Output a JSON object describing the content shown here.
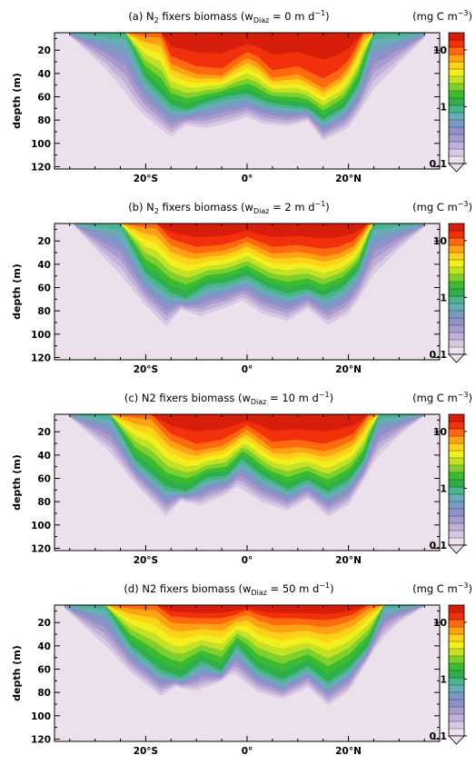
{
  "chart_data": [
    {
      "type": "heatmap",
      "panel_label": "(a)",
      "title": "(a) N2 fixers biomass (wDiaz = 0 m d-1)",
      "title_parts": {
        "pre": "(a) N",
        "sub1": "2",
        "mid": " fixers biomass (w",
        "sub2": "Diaz",
        "post": " = 0 m d",
        "sup": "−1",
        "end": ")"
      },
      "units": {
        "pre": "(mg C m",
        "sup": "−3",
        "end": ")"
      },
      "ylabel": "depth (m)",
      "x_ticks": [
        "20°S",
        "0°",
        "20°N"
      ],
      "x_tick_values": [
        -20,
        0,
        20
      ],
      "y_ticks": [
        "20",
        "40",
        "60",
        "80",
        "100",
        "120"
      ],
      "y_tick_values": [
        20,
        40,
        60,
        80,
        100,
        120
      ],
      "xlim": [
        -38,
        38
      ],
      "ylim": [
        5,
        122
      ],
      "colorbar_labels": [
        "10",
        "1",
        "0.1"
      ],
      "colorbar_range": [
        0.1,
        20
      ],
      "colorbar_scale": "log",
      "iso_depths": [
        {
          "level": 10,
          "lat": [
            -17,
            -15,
            -10,
            -5,
            -2,
            0,
            2,
            5,
            10,
            15,
            18,
            20,
            23
          ],
          "depth": [
            5,
            28,
            38,
            40,
            30,
            24,
            28,
            42,
            38,
            50,
            42,
            32,
            5
          ]
        },
        {
          "level": 1,
          "lat": [
            -24,
            -20,
            -15,
            -12,
            -8,
            -4,
            0,
            4,
            8,
            12,
            15,
            19,
            22,
            25
          ],
          "depth": [
            5,
            45,
            68,
            72,
            65,
            60,
            58,
            65,
            68,
            70,
            80,
            70,
            50,
            5
          ]
        },
        {
          "level": 0.1,
          "lat": [
            -35,
            -28,
            -22,
            -15,
            -12,
            -8,
            -3,
            0,
            3,
            8,
            12,
            15,
            20,
            25,
            30,
            35
          ],
          "depth": [
            8,
            40,
            75,
            98,
            86,
            90,
            85,
            80,
            86,
            88,
            82,
            100,
            90,
            60,
            35,
            10
          ]
        }
      ]
    },
    {
      "type": "heatmap",
      "panel_label": "(b)",
      "title": "(b) N2 fixers biomass (wDiaz = 2 m d-1)",
      "title_parts": {
        "pre": "(b) N",
        "sub1": "2",
        "mid": " fixers biomass (w",
        "sub2": "Diaz",
        "post": " = 2 m d",
        "sup": "−1",
        "end": ")"
      },
      "units": {
        "pre": "(mg C m",
        "sup": "−3",
        "end": ")"
      },
      "ylabel": "depth (m)",
      "x_ticks": [
        "20°S",
        "0°",
        "20°N"
      ],
      "x_tick_values": [
        -20,
        0,
        20
      ],
      "y_ticks": [
        "20",
        "40",
        "60",
        "80",
        "100",
        "120"
      ],
      "y_tick_values": [
        20,
        40,
        60,
        80,
        100,
        120
      ],
      "xlim": [
        -38,
        38
      ],
      "ylim": [
        5,
        122
      ],
      "colorbar_labels": [
        "10",
        "1",
        "0.1"
      ],
      "colorbar_range": [
        0.1,
        20
      ],
      "colorbar_scale": "log",
      "iso_depths": [
        {
          "level": 10,
          "lat": [
            -18,
            -15,
            -10,
            -5,
            -2,
            0,
            2,
            5,
            10,
            15,
            18,
            21,
            24
          ],
          "depth": [
            5,
            20,
            28,
            26,
            22,
            18,
            22,
            28,
            26,
            30,
            28,
            22,
            5
          ]
        },
        {
          "level": 1,
          "lat": [
            -25,
            -20,
            -15,
            -12,
            -8,
            -4,
            0,
            4,
            8,
            12,
            15,
            19,
            22,
            25
          ],
          "depth": [
            5,
            48,
            65,
            70,
            58,
            56,
            50,
            60,
            66,
            62,
            68,
            60,
            45,
            5
          ]
        },
        {
          "level": 0.1,
          "lat": [
            -34,
            -28,
            -22,
            -16,
            -13,
            -9,
            -4,
            -1,
            3,
            8,
            12,
            16,
            20,
            25,
            30,
            35
          ],
          "depth": [
            8,
            40,
            70,
            98,
            80,
            88,
            80,
            74,
            86,
            92,
            80,
            96,
            86,
            55,
            30,
            8
          ]
        }
      ]
    },
    {
      "type": "heatmap",
      "panel_label": "(c)",
      "title": "(c) N2 fixers biomass (wDiaz = 10 m d-1)",
      "title_parts": {
        "pre": "(c) N2 fixers biomass (w",
        "sub1": "",
        "mid": "",
        "sub2": "Diaz",
        "post": " = 10 m d",
        "sup": "−1",
        "end": ")"
      },
      "units": {
        "pre": "(mg C m",
        "sup": "−3",
        "end": ")"
      },
      "ylabel": "depth (m)",
      "x_ticks": [
        "20°S",
        "0°",
        "20°N"
      ],
      "x_tick_values": [
        -20,
        0,
        20
      ],
      "y_ticks": [
        "20",
        "40",
        "60",
        "80",
        "100",
        "120"
      ],
      "y_tick_values": [
        20,
        40,
        60,
        80,
        100,
        120
      ],
      "xlim": [
        -38,
        38
      ],
      "ylim": [
        5,
        122
      ],
      "colorbar_labels": [
        "10",
        "1",
        "0.1"
      ],
      "colorbar_range": [
        0.1,
        20
      ],
      "colorbar_scale": "log",
      "iso_depths": [
        {
          "level": 10,
          "lat": [
            -19,
            -15,
            -10,
            -5,
            -2,
            0,
            2,
            5,
            10,
            15,
            18,
            21,
            24
          ],
          "depth": [
            5,
            24,
            34,
            30,
            22,
            16,
            22,
            32,
            30,
            34,
            30,
            24,
            5
          ]
        },
        {
          "level": 1,
          "lat": [
            -27,
            -22,
            -16,
            -12,
            -8,
            -4,
            -1,
            3,
            8,
            12,
            16,
            20,
            23,
            26
          ],
          "depth": [
            5,
            45,
            68,
            72,
            60,
            58,
            44,
            58,
            70,
            62,
            72,
            62,
            45,
            5
          ]
        },
        {
          "level": 0.1,
          "lat": [
            -35,
            -28,
            -22,
            -16,
            -13,
            -9,
            -5,
            -2,
            3,
            8,
            12,
            16,
            20,
            25,
            30,
            35
          ],
          "depth": [
            8,
            38,
            68,
            96,
            80,
            86,
            78,
            70,
            84,
            90,
            80,
            96,
            86,
            50,
            26,
            6
          ]
        }
      ]
    },
    {
      "type": "heatmap",
      "panel_label": "(d)",
      "title": "(d) N2 fixers biomass (wDiaz = 50 m d-1)",
      "title_parts": {
        "pre": "(d) N2 fixers biomass (w",
        "sub1": "",
        "mid": "",
        "sub2": "Diaz",
        "post": " = 50 m d",
        "sup": "−1",
        "end": ")"
      },
      "units": {
        "pre": "(mg C m",
        "sup": "−3",
        "end": ")"
      },
      "ylabel": "depth (m)",
      "x_ticks": [
        "20°S",
        "0°",
        "20°N"
      ],
      "x_tick_values": [
        -20,
        0,
        20
      ],
      "y_ticks": [
        "20",
        "40",
        "60",
        "80",
        "100",
        "120"
      ],
      "y_tick_values": [
        20,
        40,
        60,
        80,
        100,
        120
      ],
      "xlim": [
        -38,
        38
      ],
      "ylim": [
        5,
        122
      ],
      "colorbar_labels": [
        "10",
        "1",
        "0.1"
      ],
      "colorbar_range": [
        0.1,
        20
      ],
      "colorbar_scale": "log",
      "iso_depths": [
        {
          "level": 10,
          "lat": [
            -18,
            -15,
            -10,
            -5,
            -2,
            0,
            2,
            5,
            10,
            15,
            18,
            21,
            24
          ],
          "depth": [
            5,
            16,
            18,
            18,
            14,
            10,
            14,
            18,
            18,
            20,
            18,
            14,
            5
          ]
        },
        {
          "level": 1,
          "lat": [
            -28,
            -23,
            -17,
            -13,
            -9,
            -5,
            -2,
            2,
            7,
            12,
            16,
            20,
            24,
            27
          ],
          "depth": [
            5,
            40,
            62,
            68,
            54,
            62,
            40,
            60,
            70,
            58,
            72,
            60,
            40,
            5
          ]
        },
        {
          "level": 0.1,
          "lat": [
            -36,
            -30,
            -23,
            -17,
            -14,
            -10,
            -6,
            -3,
            2,
            7,
            12,
            16,
            20,
            25,
            30,
            35
          ],
          "depth": [
            8,
            36,
            66,
            86,
            76,
            82,
            74,
            66,
            82,
            88,
            78,
            94,
            82,
            46,
            22,
            6
          ]
        }
      ]
    }
  ],
  "colors": {
    "background_field": "#ece0ec",
    "colormap": [
      "#ede1ee",
      "#d9c8e4",
      "#c3b0da",
      "#a89ccf",
      "#8f91c8",
      "#7a9ac4",
      "#66aeb6",
      "#49b58a",
      "#2fae4b",
      "#3bbb2f",
      "#7fd02b",
      "#c4e124",
      "#f2ef1f",
      "#ffd21a",
      "#ffa114",
      "#ff6a0e",
      "#f2300b",
      "#d61e0a"
    ]
  }
}
